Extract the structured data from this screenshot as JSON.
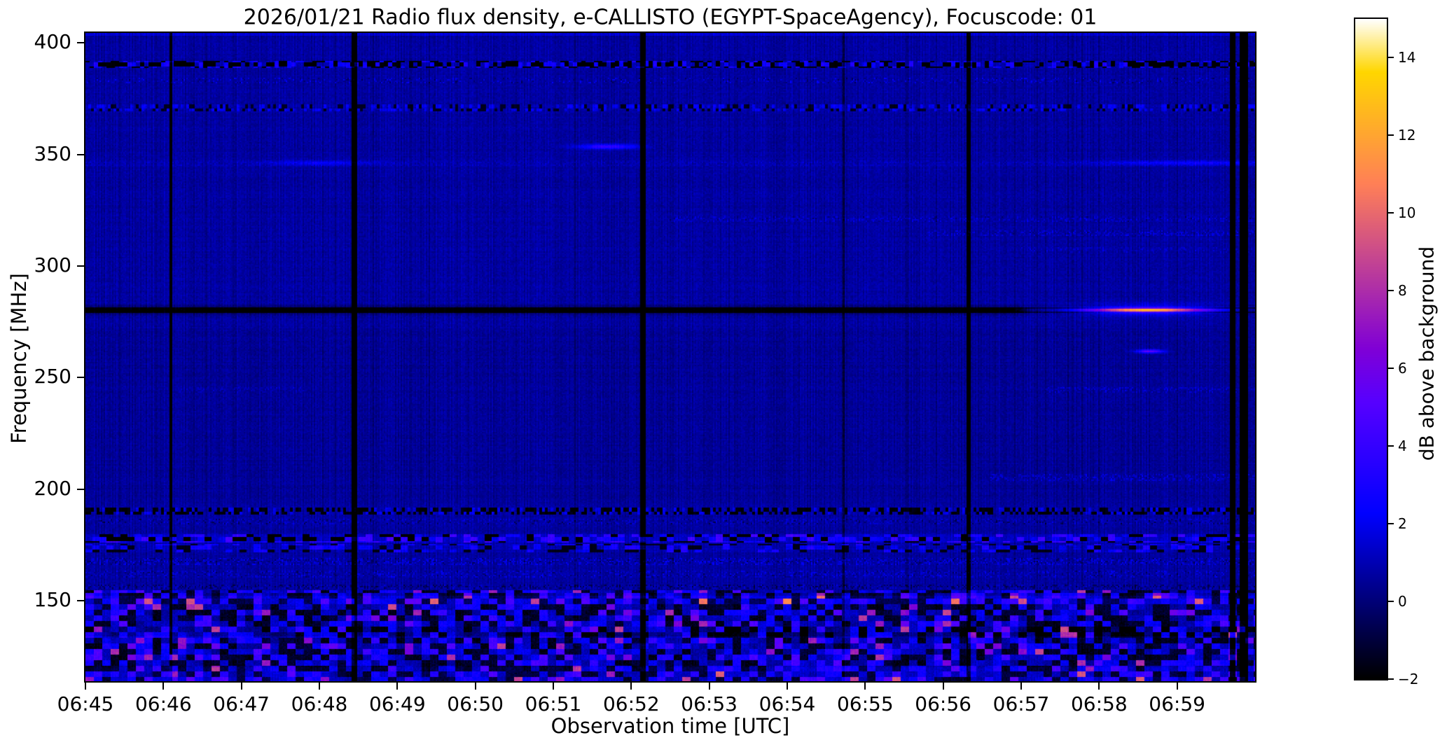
{
  "chart_data": {
    "type": "heatmap",
    "subtype": "radio-spectrogram",
    "title": "2026/01/21  Radio flux density, e-CALLISTO (EGYPT-SpaceAgency), Focuscode: 01",
    "date": "2026/01/21",
    "instrument": "e-CALLISTO",
    "station": "EGYPT-SpaceAgency",
    "focuscode": "01",
    "xlabel": "Observation time [UTC]",
    "ylabel": "Frequency [MHz]",
    "x_ticks": [
      "06:45",
      "06:46",
      "06:47",
      "06:48",
      "06:49",
      "06:50",
      "06:51",
      "06:52",
      "06:53",
      "06:54",
      "06:55",
      "06:56",
      "06:57",
      "06:58",
      "06:59"
    ],
    "x_start": "06:45",
    "x_end": "07:00",
    "x_span_minutes": 15,
    "y_ticks": [
      400,
      350,
      300,
      250,
      200,
      150
    ],
    "freq_range_mhz": [
      114,
      404.5
    ],
    "grid": false,
    "colorbar": {
      "label": "dB above background",
      "ticks": [
        -2,
        0,
        2,
        4,
        6,
        8,
        10,
        12,
        14
      ],
      "tick_labels": [
        "−2",
        "0",
        "2",
        "4",
        "6",
        "8",
        "10",
        "12",
        "14"
      ],
      "range": [
        -2,
        15
      ],
      "colormap": "gnuplot2",
      "stops": [
        {
          "value": -2,
          "color": "#000000"
        },
        {
          "value": 0,
          "color": "#00007a"
        },
        {
          "value": 2,
          "color": "#0000f2"
        },
        {
          "value": 4,
          "color": "#3300ff"
        },
        {
          "value": 6,
          "color": "#7000e6"
        },
        {
          "value": 8,
          "color": "#ad2daa"
        },
        {
          "value": 10,
          "color": "#e8696d"
        },
        {
          "value": 12,
          "color": "#ffa531"
        },
        {
          "value": 14,
          "color": "#ffe144"
        },
        {
          "value": 15,
          "color": "#ffffff"
        }
      ]
    },
    "background_level_db": 0.72,
    "features": [
      {
        "id": "top-edge-bright-row",
        "kind": "top_edge",
        "f0": 403.2,
        "amp": 0.9
      },
      {
        "id": "rfi-band-390",
        "kind": "dash_band",
        "f0": 388.6,
        "f1": 391.8,
        "block": 3,
        "p_dark": 0.42,
        "dark": -2.4,
        "p_bright": 0.22,
        "bright": 2.6,
        "base": 0.25
      },
      {
        "id": "speckle-row-383",
        "kind": "brighten_row",
        "f0": 382.2,
        "f1": 384.2,
        "t0": 0,
        "t1": 15,
        "p": 0.1,
        "amp": 1.6,
        "dark_p": 0.05,
        "dark_amp": -1.0
      },
      {
        "id": "rfi-band-371",
        "kind": "dash_band",
        "f0": 369.6,
        "f1": 372.8,
        "block": 2,
        "p_dark": 0.25,
        "dark": -1.6,
        "p_bright": 0.3,
        "bright": 1.7,
        "base": 0.1
      },
      {
        "id": "line-346-weak",
        "kind": "brighten_row",
        "f0": 344.9,
        "f1": 347.3,
        "t0": 0,
        "t1": 15,
        "p": 0.5,
        "amp": 0.55,
        "dark_p": 0,
        "dark_amp": 0
      },
      {
        "id": "line-346-left-segment",
        "kind": "streak",
        "f0": 344.5,
        "f1": 347.8,
        "fc": 346.2,
        "fsig": 1.0,
        "t0": 1.8,
        "t1": 4.2,
        "tc": 3.0,
        "tsig": 0.7,
        "amp": 1.4
      },
      {
        "id": "line-346-right-segment",
        "kind": "streak",
        "f0": 344.5,
        "f1": 347.8,
        "fc": 346.2,
        "fsig": 1.0,
        "t0": 12.2,
        "t1": 15,
        "tc": 14.2,
        "tsig": 1.2,
        "amp": 1.7
      },
      {
        "id": "burst-353-0651",
        "kind": "streak",
        "f0": 351.4,
        "f1": 355.6,
        "fc": 353.5,
        "fsig": 1.1,
        "t0": 6.0,
        "t1": 7.3,
        "tc": 6.7,
        "tsig": 0.38,
        "amp": 3.4
      },
      {
        "id": "speckle-row-321",
        "kind": "brighten_row",
        "f0": 319.9,
        "f1": 322.3,
        "t0": 7.5,
        "t1": 15,
        "p": 0.28,
        "amp": 1.0,
        "dark_p": 0.04,
        "dark_amp": -0.8
      },
      {
        "id": "speckle-row-315",
        "kind": "brighten_row",
        "f0": 313.8,
        "f1": 316.3,
        "t0": 10.8,
        "t1": 15,
        "p": 0.32,
        "amp": 1.3,
        "dark_p": 0.03,
        "dark_amp": -0.6
      },
      {
        "id": "speckle-row-307",
        "kind": "brighten_row",
        "f0": 306.0,
        "f1": 308.2,
        "t0": 12.0,
        "t1": 15,
        "p": 0.2,
        "amp": 0.9,
        "dark_p": 0,
        "dark_amp": 0
      },
      {
        "id": "quiet-dark-line-280",
        "kind": "dark_hline",
        "fc": 280.3,
        "core_halfw": 1.1,
        "core": -2.9,
        "soft_halfw": 3.0,
        "soft": -0.9
      },
      {
        "id": "emission-280-0657-0700",
        "kind": "emission_line",
        "fc": 280.3,
        "fsig": 0.9,
        "fsig2": 2.3,
        "t_on": 12.15,
        "ramp": 0.25,
        "base_amp": 1.9,
        "tc": 13.62,
        "tsig": 0.78,
        "peak": 10.3
      },
      {
        "id": "dot-262-0658",
        "kind": "dot",
        "fc": 261.8,
        "fsig": 0.8,
        "tc": 13.65,
        "tsig": 0.17,
        "amp": 5.0
      },
      {
        "id": "speckle-row-245-right",
        "kind": "brighten_row",
        "f0": 243.4,
        "f1": 245.8,
        "t0": 12.3,
        "t1": 15,
        "p": 0.3,
        "amp": 1.1,
        "dark_p": 0,
        "dark_amp": 0
      },
      {
        "id": "speckle-row-245-left",
        "kind": "brighten_row",
        "f0": 243.4,
        "f1": 245.8,
        "t0": 1.2,
        "t1": 2.8,
        "p": 0.3,
        "amp": 0.8,
        "dark_p": 0,
        "dark_amp": 0
      },
      {
        "id": "speckle-row-205",
        "kind": "brighten_row",
        "f0": 204.0,
        "f1": 206.6,
        "t0": 11.6,
        "t1": 15,
        "p": 0.32,
        "amp": 1.3,
        "dark_p": 0,
        "dark_amp": 0
      },
      {
        "id": "rfi-band-190",
        "kind": "dash_band",
        "f0": 188.8,
        "f1": 191.7,
        "block": 2,
        "p_dark": 0.45,
        "dark": -2.2,
        "p_bright": 0.15,
        "bright": 1.5,
        "base": 0.1
      },
      {
        "id": "speckle-band-186",
        "kind": "brighten_row",
        "f0": 184.5,
        "f1": 187.0,
        "t0": 0,
        "t1": 15,
        "p": 0.3,
        "amp": 0.9,
        "dark_p": 0.07,
        "dark_amp": -1.2
      },
      {
        "id": "rfi-band-178",
        "kind": "patch_band",
        "f0": 176.4,
        "f1": 179.8,
        "block": 5,
        "p_bright": 0.38,
        "bright": 2.6,
        "p_dark": 0.22,
        "dark": -2.0,
        "base": 0.6
      },
      {
        "id": "rfi-band-174",
        "kind": "patch_band",
        "f0": 171.9,
        "f1": 175.3,
        "block": 5,
        "p_bright": 0.3,
        "bright": 1.8,
        "p_dark": 0.2,
        "dark": -1.6,
        "base": 0.3
      },
      {
        "id": "speckle-band-168",
        "kind": "brighten_row",
        "f0": 165.8,
        "f1": 169.4,
        "t0": 0,
        "t1": 15,
        "p": 0.3,
        "amp": 1.5,
        "dark_p": 0.08,
        "dark_amp": -1.0
      },
      {
        "id": "speckle-band-162",
        "kind": "brighten_row",
        "f0": 160.4,
        "f1": 163.6,
        "t0": 0,
        "t1": 15,
        "p": 0.22,
        "amp": 1.2,
        "dark_p": 0.06,
        "dark_amp": -0.9
      },
      {
        "id": "dark-band-157",
        "kind": "brighten_row",
        "f0": 155.4,
        "f1": 157.6,
        "t0": 0,
        "t1": 15,
        "p": 0.15,
        "amp": 0.8,
        "dark_p": 0.25,
        "dark_amp": -1.2
      },
      {
        "id": "noise-floor-below-154",
        "kind": "noise_floor",
        "f_top": 154.5,
        "block_cols": 6,
        "block_rows": 4,
        "bands": [
          {
            "f0": 148.3,
            "f1": 152.2,
            "bias": 0.7,
            "hot_boost": 2.2
          },
          {
            "f0": 134.0,
            "f1": 138.5,
            "bias": -0.8,
            "hot_boost": 1.5
          },
          {
            "f0": 114.0,
            "f1": 120.0,
            "bias": 0.35,
            "hot_boost": 0.8
          }
        ]
      },
      {
        "id": "vline-0646",
        "kind": "vline",
        "t": 1.1,
        "halfw": 0.022,
        "depth": -3.2
      },
      {
        "id": "vline-0648",
        "kind": "vline",
        "t": 3.45,
        "halfw": 0.028,
        "depth": -3.6
      },
      {
        "id": "vline-0652",
        "kind": "vline",
        "t": 7.15,
        "halfw": 0.028,
        "depth": -3.6
      },
      {
        "id": "vline-0654-faint",
        "kind": "vline",
        "t": 9.72,
        "halfw": 0.02,
        "depth": -1.4
      },
      {
        "id": "vline-0656",
        "kind": "vline",
        "t": 11.33,
        "halfw": 0.026,
        "depth": -3.2
      },
      {
        "id": "vline-0659a",
        "kind": "vline",
        "t": 14.72,
        "halfw": 0.035,
        "depth": -6
      },
      {
        "id": "vline-0659b",
        "kind": "vline",
        "t": 14.86,
        "halfw": 0.05,
        "depth": -6
      }
    ]
  }
}
